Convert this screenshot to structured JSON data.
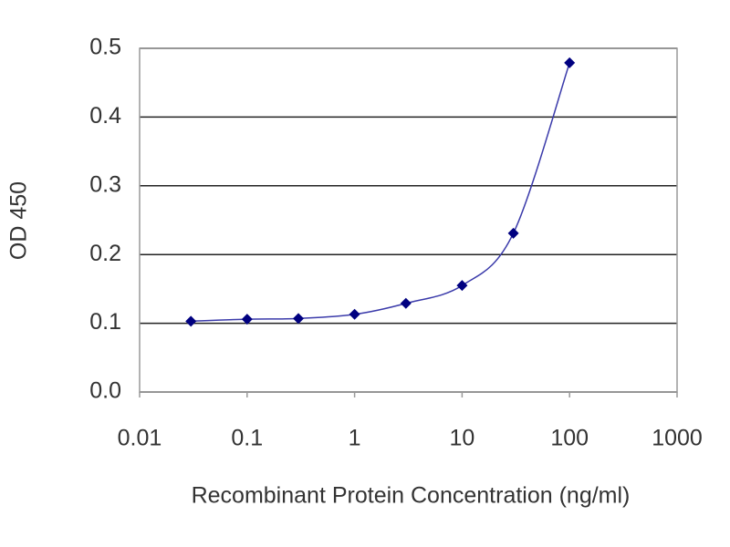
{
  "chart_data": {
    "type": "line",
    "x_label": "Recombinant Protein Concentration (ng/ml)",
    "y_label": "OD 450",
    "x": [
      0.03,
      0.1,
      0.3,
      1,
      3,
      10,
      30,
      100
    ],
    "series": [
      {
        "color": "#000080",
        "values": [
          0.103,
          0.106,
          0.107,
          0.113,
          0.129,
          0.155,
          0.231,
          0.479
        ]
      }
    ],
    "line_color": "#3a3aaa",
    "x_log": true,
    "xlim": [
      0.01,
      1000
    ],
    "xticks": [
      0.01,
      0.1,
      1,
      10,
      100,
      1000
    ],
    "ylim": [
      0,
      0.5
    ],
    "yticks": [
      {
        "value": 0,
        "label": "0.0"
      },
      0.1,
      0.2,
      0.3,
      0.4,
      0.5
    ],
    "grid": true
  }
}
